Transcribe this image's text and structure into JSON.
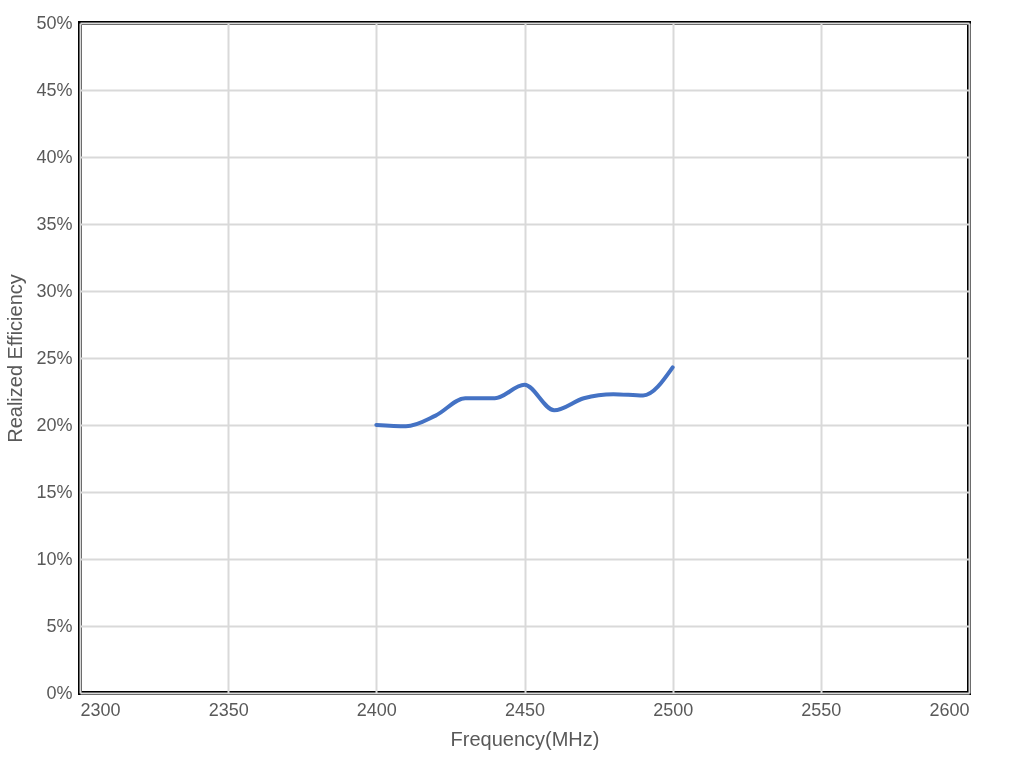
{
  "chart_data": {
    "type": "line",
    "xlabel": "Frequency(MHz)",
    "ylabel": "Realized Efficiency",
    "x": [
      2400,
      2410,
      2420,
      2430,
      2440,
      2450,
      2460,
      2470,
      2480,
      2490,
      2500
    ],
    "series": [
      {
        "color": "#4472c4",
        "values": [
          20.0,
          19.9,
          20.7,
          22.0,
          22.0,
          23.0,
          21.1,
          22.0,
          22.3,
          22.2,
          24.3
        ]
      }
    ],
    "xlim": [
      2300,
      2600
    ],
    "xticks": [
      2300,
      2350,
      2400,
      2450,
      2500,
      2550,
      2600
    ],
    "ylim": [
      0,
      50
    ],
    "yticks": [
      {
        "value": 0,
        "label": "0%"
      },
      {
        "value": 5,
        "label": "5%"
      },
      {
        "value": 10,
        "label": "10%"
      },
      {
        "value": 15,
        "label": "15%"
      },
      {
        "value": 20,
        "label": "20%"
      },
      {
        "value": 25,
        "label": "25%"
      },
      {
        "value": 30,
        "label": "30%"
      },
      {
        "value": 35,
        "label": "35%"
      },
      {
        "value": 40,
        "label": "40%"
      },
      {
        "value": 45,
        "label": "45%"
      },
      {
        "value": 50,
        "label": "50%"
      }
    ],
    "grid": true,
    "marker": "none",
    "line_style": "solid",
    "legend": false
  }
}
